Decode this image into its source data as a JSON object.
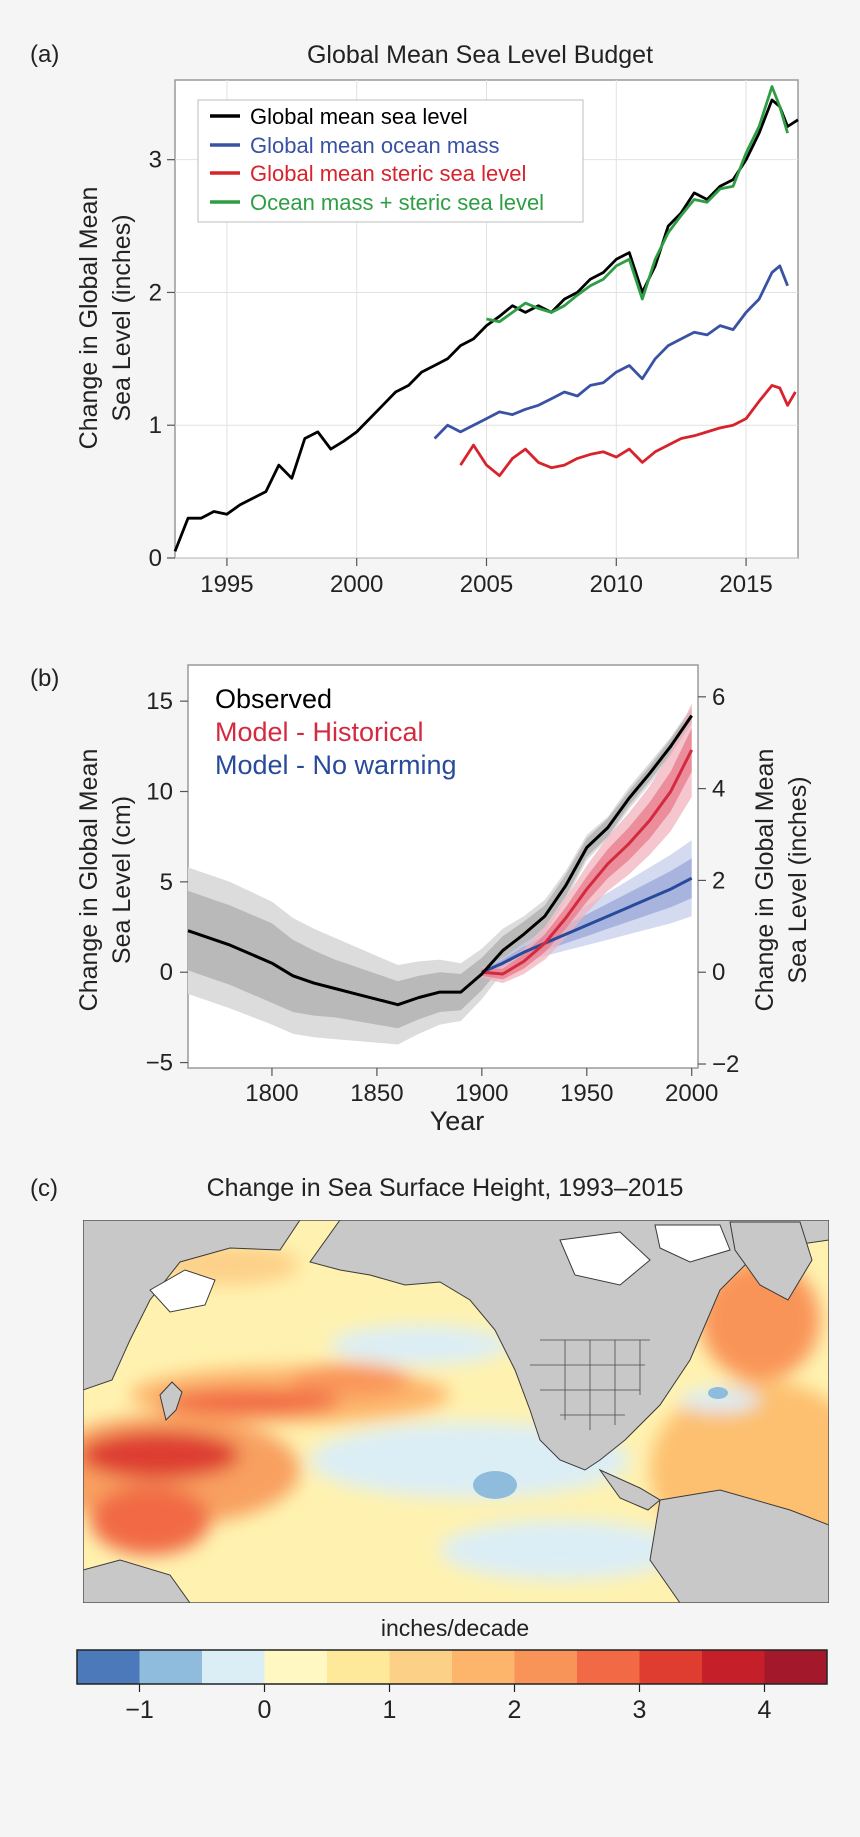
{
  "colors": {
    "black": "#000000",
    "blue": "#3a52a4",
    "red": "#d7232b",
    "green": "#2e9e44",
    "pink": "#d42a3f",
    "navy": "#274a9a",
    "land": "#c8c8c8"
  },
  "chart_data": [
    {
      "panel_label": "(a)",
      "type": "line",
      "title": "Global Mean Sea Level Budget",
      "xlabel": "",
      "ylabel_line1": "Change in Global Mean",
      "ylabel_line2": "Sea Level (inches)",
      "xlim": [
        1993,
        2017
      ],
      "ylim": [
        0,
        3.6
      ],
      "xticks": [
        1995,
        2000,
        2005,
        2010,
        2015
      ],
      "yticks": [
        0,
        1,
        2,
        3
      ],
      "grid": true,
      "legend_position": "top-left",
      "series": [
        {
          "name": "Global mean sea level",
          "color": "#000000",
          "x": [
            1993.0,
            1993.5,
            1994.0,
            1994.5,
            1995.0,
            1995.5,
            1996.0,
            1996.5,
            1997.0,
            1997.5,
            1998.0,
            1998.5,
            1999.0,
            1999.5,
            2000.0,
            2000.5,
            2001.0,
            2001.5,
            2002.0,
            2002.5,
            2003.0,
            2003.5,
            2004.0,
            2004.5,
            2005.0,
            2005.5,
            2006.0,
            2006.5,
            2007.0,
            2007.5,
            2008.0,
            2008.5,
            2009.0,
            2009.5,
            2010.0,
            2010.5,
            2011.0,
            2011.5,
            2012.0,
            2012.5,
            2013.0,
            2013.5,
            2014.0,
            2014.5,
            2015.0,
            2015.5,
            2016.0,
            2016.3,
            2016.6,
            2017.0
          ],
          "y": [
            0.05,
            0.3,
            0.3,
            0.35,
            0.33,
            0.4,
            0.45,
            0.5,
            0.7,
            0.6,
            0.9,
            0.95,
            0.82,
            0.88,
            0.95,
            1.05,
            1.15,
            1.25,
            1.3,
            1.4,
            1.45,
            1.5,
            1.6,
            1.65,
            1.75,
            1.82,
            1.9,
            1.85,
            1.9,
            1.85,
            1.95,
            2.0,
            2.1,
            2.15,
            2.25,
            2.3,
            2.0,
            2.2,
            2.5,
            2.6,
            2.75,
            2.7,
            2.8,
            2.85,
            3.0,
            3.2,
            3.45,
            3.4,
            3.25,
            3.3
          ]
        },
        {
          "name": "Global mean ocean mass",
          "color": "#3a52a4",
          "x": [
            2003.0,
            2003.5,
            2004.0,
            2004.5,
            2005.0,
            2005.5,
            2006.0,
            2006.5,
            2007.0,
            2007.5,
            2008.0,
            2008.5,
            2009.0,
            2009.5,
            2010.0,
            2010.5,
            2011.0,
            2011.5,
            2012.0,
            2012.5,
            2013.0,
            2013.5,
            2014.0,
            2014.5,
            2015.0,
            2015.5,
            2016.0,
            2016.3,
            2016.6
          ],
          "y": [
            0.9,
            1.0,
            0.95,
            1.0,
            1.05,
            1.1,
            1.08,
            1.12,
            1.15,
            1.2,
            1.25,
            1.22,
            1.3,
            1.32,
            1.4,
            1.45,
            1.35,
            1.5,
            1.6,
            1.65,
            1.7,
            1.68,
            1.75,
            1.72,
            1.85,
            1.95,
            2.15,
            2.2,
            2.05
          ]
        },
        {
          "name": "Global mean steric sea level",
          "color": "#d7232b",
          "x": [
            2004.0,
            2004.5,
            2005.0,
            2005.5,
            2006.0,
            2006.5,
            2007.0,
            2007.5,
            2008.0,
            2008.5,
            2009.0,
            2009.5,
            2010.0,
            2010.5,
            2011.0,
            2011.5,
            2012.0,
            2012.5,
            2013.0,
            2013.5,
            2014.0,
            2014.5,
            2015.0,
            2015.5,
            2016.0,
            2016.3,
            2016.6,
            2016.9
          ],
          "y": [
            0.7,
            0.85,
            0.7,
            0.62,
            0.75,
            0.82,
            0.72,
            0.68,
            0.7,
            0.75,
            0.78,
            0.8,
            0.76,
            0.82,
            0.72,
            0.8,
            0.85,
            0.9,
            0.92,
            0.95,
            0.98,
            1.0,
            1.05,
            1.18,
            1.3,
            1.28,
            1.15,
            1.25
          ]
        },
        {
          "name": "Ocean mass + steric sea level",
          "color": "#2e9e44",
          "x": [
            2005.0,
            2005.5,
            2006.0,
            2006.5,
            2007.0,
            2007.5,
            2008.0,
            2008.5,
            2009.0,
            2009.5,
            2010.0,
            2010.5,
            2011.0,
            2011.5,
            2012.0,
            2012.5,
            2013.0,
            2013.5,
            2014.0,
            2014.5,
            2015.0,
            2015.5,
            2016.0,
            2016.3,
            2016.6
          ],
          "y": [
            1.8,
            1.78,
            1.85,
            1.92,
            1.88,
            1.85,
            1.9,
            1.98,
            2.05,
            2.1,
            2.2,
            2.25,
            1.95,
            2.25,
            2.45,
            2.58,
            2.7,
            2.68,
            2.78,
            2.8,
            3.05,
            3.25,
            3.55,
            3.4,
            3.2
          ]
        }
      ]
    },
    {
      "panel_label": "(b)",
      "type": "line",
      "title": "",
      "xlabel": "Year",
      "ylabel_line1": "Change in Global Mean",
      "ylabel_line2": "Sea Level (cm)",
      "ylabel_right_line1": "Change in Global Mean",
      "ylabel_right_line2": "Sea Level (inches)",
      "xlim": [
        1760,
        2003
      ],
      "ylim": [
        -5.3,
        17
      ],
      "xticks": [
        1800,
        1850,
        1900,
        1950,
        2000
      ],
      "yticks": [
        -5,
        0,
        5,
        10,
        15
      ],
      "yticks_left_labels": [
        "−5",
        "0",
        "5",
        "10",
        "15"
      ],
      "yticks_right": [
        -2,
        0,
        2,
        4,
        6
      ],
      "yticks_right_labels": [
        "−2",
        "0",
        "2",
        "4",
        "6"
      ],
      "grid": false,
      "legend_position": "top-left",
      "series": [
        {
          "name": "Observed",
          "color": "#000000",
          "x": [
            1760,
            1780,
            1800,
            1810,
            1820,
            1830,
            1840,
            1850,
            1860,
            1870,
            1880,
            1890,
            1900,
            1910,
            1920,
            1930,
            1940,
            1950,
            1960,
            1970,
            1980,
            1990,
            2000
          ],
          "y": [
            2.3,
            1.5,
            0.5,
            -0.2,
            -0.6,
            -0.9,
            -1.2,
            -1.5,
            -1.8,
            -1.4,
            -1.1,
            -1.1,
            -0.1,
            1.2,
            2.1,
            3.1,
            4.8,
            6.9,
            8.0,
            9.6,
            11.0,
            12.5,
            14.2
          ],
          "band_inner": [
            2.2,
            2.2,
            2.2,
            2.0,
            1.8,
            1.6,
            1.5,
            1.4,
            1.3,
            1.2,
            1.1,
            1.0,
            0.9,
            0.8,
            0.7,
            0.6,
            0.6,
            0.5,
            0.5,
            0.4,
            0.4,
            0.4,
            0.4
          ],
          "band_outer": [
            3.5,
            3.5,
            3.4,
            3.2,
            3.0,
            2.8,
            2.6,
            2.4,
            2.2,
            2.0,
            1.8,
            1.6,
            1.4,
            1.2,
            1.0,
            0.9,
            0.8,
            0.7,
            0.6,
            0.6,
            0.6,
            0.5,
            0.5
          ]
        },
        {
          "name": "Model - Historical",
          "color": "#d42a3f",
          "x": [
            1900,
            1910,
            1920,
            1930,
            1940,
            1950,
            1960,
            1970,
            1980,
            1990,
            2000
          ],
          "y": [
            0.0,
            -0.1,
            0.6,
            1.6,
            3.0,
            4.6,
            6.0,
            7.1,
            8.4,
            10.0,
            12.3
          ],
          "band_inner": [
            0.2,
            0.3,
            0.4,
            0.5,
            0.6,
            0.7,
            0.8,
            0.9,
            1.0,
            1.1,
            1.2
          ],
          "band_outer": [
            0.3,
            0.5,
            0.7,
            0.9,
            1.1,
            1.3,
            1.5,
            1.7,
            1.9,
            2.2,
            2.6
          ]
        },
        {
          "name": "Model - No warming",
          "color": "#274a9a",
          "x": [
            1900,
            1910,
            1920,
            1930,
            1940,
            1950,
            1960,
            1970,
            1980,
            1990,
            2000
          ],
          "y": [
            0.0,
            0.5,
            1.1,
            1.6,
            2.1,
            2.6,
            3.1,
            3.6,
            4.1,
            4.6,
            5.2
          ],
          "band_inner": [
            0.1,
            0.2,
            0.3,
            0.4,
            0.5,
            0.6,
            0.7,
            0.8,
            0.9,
            1.0,
            1.1
          ],
          "band_outer": [
            0.1,
            0.3,
            0.5,
            0.7,
            0.9,
            1.1,
            1.3,
            1.5,
            1.7,
            1.9,
            2.1
          ]
        }
      ]
    },
    {
      "panel_label": "(c)",
      "type": "heatmap",
      "title": "Change in Sea Surface Height, 1993–2015",
      "colorbar_label": "inches/decade",
      "colorbar_ticks": [
        -1,
        0,
        1,
        2,
        3,
        4
      ],
      "colorbar_tick_labels": [
        "−1",
        "0",
        "1",
        "2",
        "3",
        "4"
      ],
      "colorbar_range": [
        -1.5,
        4.5
      ],
      "colorbar_bins": [
        {
          "from": -1.5,
          "to": -1.0,
          "color": "#4b79b9"
        },
        {
          "from": -1.0,
          "to": -0.5,
          "color": "#8fbcdc"
        },
        {
          "from": -0.5,
          "to": 0.0,
          "color": "#dbeef6"
        },
        {
          "from": 0.0,
          "to": 0.5,
          "color": "#fff8c2"
        },
        {
          "from": 0.5,
          "to": 1.0,
          "color": "#fee99a"
        },
        {
          "from": 1.0,
          "to": 1.5,
          "color": "#fdd088"
        },
        {
          "from": 1.5,
          "to": 2.0,
          "color": "#fdb56c"
        },
        {
          "from": 2.0,
          "to": 2.5,
          "color": "#f99459"
        },
        {
          "from": 2.5,
          "to": 3.0,
          "color": "#f16a45"
        },
        {
          "from": 3.0,
          "to": 3.5,
          "color": "#de3d30"
        },
        {
          "from": 3.5,
          "to": 4.0,
          "color": "#c51f2a"
        },
        {
          "from": 4.0,
          "to": 4.5,
          "color": "#a3182b"
        }
      ]
    }
  ]
}
